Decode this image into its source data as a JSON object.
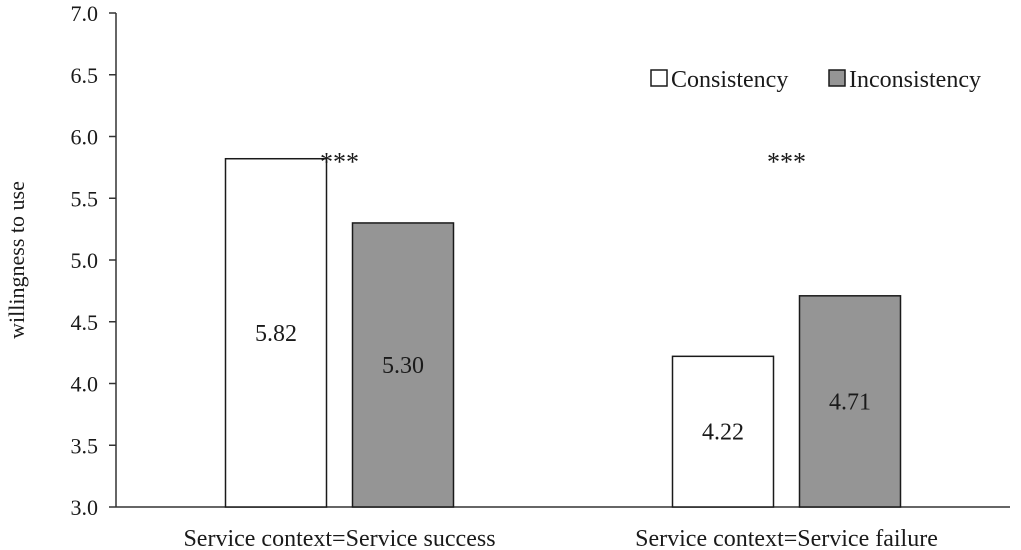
{
  "chart_data": {
    "type": "bar",
    "categories": [
      "Service context=Service success",
      "Service context=Service failure"
    ],
    "series": [
      {
        "name": "Consistency",
        "values": [
          5.82,
          4.22
        ],
        "labels": [
          "5.82",
          "4.22"
        ],
        "color": "#ffffff"
      },
      {
        "name": "Inconsistency",
        "values": [
          5.3,
          4.71
        ],
        "labels": [
          "5.30",
          "4.71"
        ],
        "color": "#959595"
      }
    ],
    "significance": [
      "***",
      "***"
    ],
    "xlabel": "",
    "ylabel": "willingness to use",
    "ylim": [
      3.0,
      7.0
    ],
    "yticks": [
      "3.0",
      "3.5",
      "4.0",
      "4.5",
      "5.0",
      "5.5",
      "6.0",
      "6.5",
      "7.0"
    ],
    "grid": false,
    "legend_position": "top-right"
  }
}
